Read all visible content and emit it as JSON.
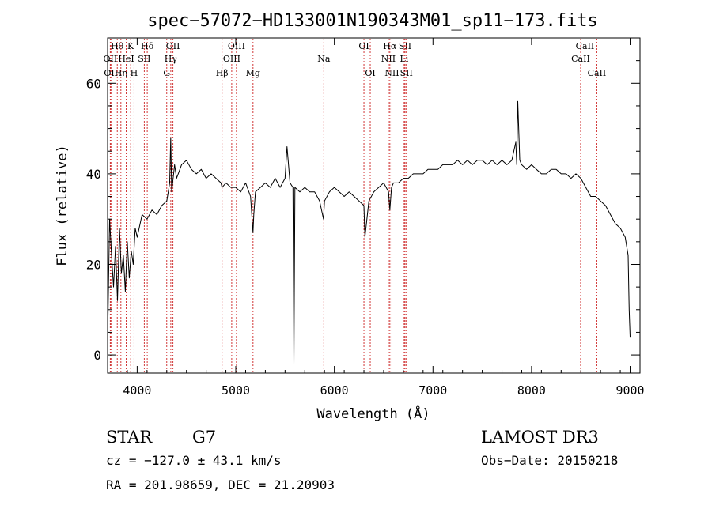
{
  "chart_data": {
    "type": "line",
    "title": "spec−57072−HD133001N190343M01_sp11−173.fits",
    "xlabel": "Wavelength (Å)",
    "ylabel": "Flux (relative)",
    "xlim": [
      3700,
      9100
    ],
    "ylim": [
      -4,
      70
    ],
    "x_ticks": [
      4000,
      5000,
      6000,
      7000,
      8000,
      9000
    ],
    "x_tick_labels": [
      "4000",
      "5000",
      "6000",
      "7000",
      "8000",
      "9000"
    ],
    "y_ticks": [
      0,
      20,
      40,
      60
    ],
    "y_tick_labels": [
      "0",
      "20",
      "40",
      "60"
    ],
    "grid": false,
    "line_color": "#000000",
    "marker_color": "#cc2222",
    "series": [
      {
        "x": [
          3700,
          3720,
          3740,
          3760,
          3780,
          3800,
          3820,
          3840,
          3860,
          3880,
          3900,
          3920,
          3940,
          3960,
          3980,
          4000,
          4050,
          4100,
          4150,
          4200,
          4250,
          4300,
          4330,
          4340,
          4350,
          4380,
          4400,
          4450,
          4500,
          4550,
          4600,
          4650,
          4700,
          4750,
          4800,
          4850,
          4861,
          4900,
          4950,
          5000,
          5050,
          5100,
          5150,
          5175,
          5183,
          5200,
          5250,
          5300,
          5350,
          5400,
          5450,
          5500,
          5520,
          5550,
          5580,
          5590,
          5600,
          5650,
          5700,
          5750,
          5800,
          5850,
          5890,
          5900,
          5950,
          6000,
          6050,
          6100,
          6150,
          6200,
          6250,
          6300,
          6310,
          6350,
          6400,
          6450,
          6500,
          6550,
          6563,
          6580,
          6600,
          6650,
          6700,
          6750,
          6800,
          6850,
          6900,
          6950,
          7000,
          7050,
          7100,
          7150,
          7200,
          7250,
          7300,
          7350,
          7400,
          7450,
          7500,
          7550,
          7600,
          7650,
          7700,
          7750,
          7800,
          7820,
          7840,
          7850,
          7860,
          7880,
          7900,
          7950,
          8000,
          8050,
          8100,
          8150,
          8200,
          8250,
          8300,
          8350,
          8400,
          8450,
          8500,
          8550,
          8600,
          8650,
          8700,
          8750,
          8800,
          8850,
          8900,
          8950,
          8980,
          8990,
          9000
        ],
        "y": [
          3,
          30,
          22,
          15,
          24,
          12,
          28,
          18,
          22,
          14,
          25,
          17,
          23,
          20,
          28,
          26,
          31,
          30,
          32,
          31,
          33,
          34,
          38,
          48,
          36,
          42,
          39,
          42,
          43,
          41,
          40,
          41,
          39,
          40,
          39,
          38,
          37,
          38,
          37,
          37,
          36,
          38,
          35,
          27,
          31,
          36,
          37,
          38,
          37,
          39,
          37,
          39,
          46,
          38,
          37,
          -2,
          37,
          36,
          37,
          36,
          36,
          34,
          30,
          34,
          36,
          37,
          36,
          35,
          36,
          35,
          34,
          33,
          26,
          34,
          36,
          37,
          38,
          36,
          32,
          37,
          38,
          38,
          39,
          39,
          40,
          40,
          40,
          41,
          41,
          41,
          42,
          42,
          42,
          43,
          42,
          43,
          42,
          43,
          43,
          42,
          43,
          42,
          43,
          42,
          43,
          45,
          47,
          42,
          56,
          43,
          42,
          41,
          42,
          41,
          40,
          40,
          41,
          41,
          40,
          40,
          39,
          40,
          39,
          37,
          35,
          35,
          34,
          33,
          31,
          29,
          28,
          26,
          22,
          10,
          4
        ]
      }
    ],
    "line_markers": [
      {
        "wavelength": 3727,
        "label": "OII",
        "row": 2
      },
      {
        "wavelength": 3734,
        "label": "OII",
        "row": 3
      },
      {
        "wavelength": 3798,
        "label": "Hθ",
        "row": 1
      },
      {
        "wavelength": 3835,
        "label": "Hη",
        "row": 3
      },
      {
        "wavelength": 3889,
        "label": "HeI",
        "row": 2
      },
      {
        "wavelength": 3934,
        "label": "K",
        "row": 1
      },
      {
        "wavelength": 3968,
        "label": "H",
        "row": 3
      },
      {
        "wavelength": 4072,
        "label": "SII",
        "row": 2
      },
      {
        "wavelength": 4102,
        "label": "Hδ",
        "row": 1
      },
      {
        "wavelength": 4300,
        "label": "G",
        "row": 3
      },
      {
        "wavelength": 4341,
        "label": "Hγ",
        "row": 2
      },
      {
        "wavelength": 4363,
        "label": "OII",
        "row": 1
      },
      {
        "wavelength": 4861,
        "label": "Hβ",
        "row": 3
      },
      {
        "wavelength": 4959,
        "label": "OIII",
        "row": 2
      },
      {
        "wavelength": 5007,
        "label": "OIII",
        "row": 1
      },
      {
        "wavelength": 5175,
        "label": "Mg",
        "row": 3
      },
      {
        "wavelength": 5893,
        "label": "Na",
        "row": 2
      },
      {
        "wavelength": 6300,
        "label": "OI",
        "row": 1
      },
      {
        "wavelength": 6364,
        "label": "OI",
        "row": 3
      },
      {
        "wavelength": 6548,
        "label": "NII",
        "row": 2
      },
      {
        "wavelength": 6563,
        "label": "Hα",
        "row": 1
      },
      {
        "wavelength": 6584,
        "label": "NII",
        "row": 3
      },
      {
        "wavelength": 6708,
        "label": "Li",
        "row": 2
      },
      {
        "wavelength": 6717,
        "label": "SII",
        "row": 1
      },
      {
        "wavelength": 6731,
        "label": "SII",
        "row": 3
      },
      {
        "wavelength": 8498,
        "label": "CaII",
        "row": 2
      },
      {
        "wavelength": 8542,
        "label": "CaII",
        "row": 1
      },
      {
        "wavelength": 8662,
        "label": "CaII",
        "row": 3
      }
    ]
  },
  "info": {
    "object_class": "STAR",
    "subclass": "G7",
    "survey": "LAMOST DR3",
    "cz": "cz = −127.0 ± 43.1 km/s",
    "obs_date": "Obs−Date: 20150218",
    "coords": "RA = 201.98659, DEC =  21.20903"
  }
}
